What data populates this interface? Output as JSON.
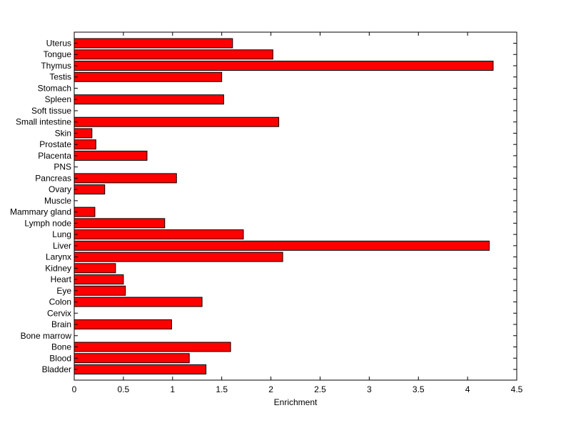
{
  "chart_data": {
    "type": "bar",
    "orientation": "horizontal",
    "title": "",
    "xlabel": "Enrichment",
    "ylabel": "",
    "xlim": [
      0,
      4.5
    ],
    "xticks": [
      0,
      0.5,
      1,
      1.5,
      2,
      2.5,
      3,
      3.5,
      4,
      4.5
    ],
    "xtick_labels": [
      "0",
      "0.5",
      "1",
      "1.5",
      "2",
      "2.5",
      "3",
      "3.5",
      "4",
      "4.5"
    ],
    "grid": false,
    "legend": "none",
    "bar_color": "#ff0000",
    "edge_color": "#000000",
    "categories": [
      "Bladder",
      "Blood",
      "Bone",
      "Bone marrow",
      "Brain",
      "Cervix",
      "Colon",
      "Eye",
      "Heart",
      "Kidney",
      "Larynx",
      "Liver",
      "Lung",
      "Lymph node",
      "Mammary gland",
      "Muscle",
      "Ovary",
      "Pancreas",
      "PNS",
      "Placenta",
      "Prostate",
      "Skin",
      "Small intestine",
      "Soft tissue",
      "Spleen",
      "Stomach",
      "Testis",
      "Thymus",
      "Tongue",
      "Uterus"
    ],
    "values": [
      1.34,
      1.17,
      1.59,
      0,
      0.99,
      0,
      1.3,
      0.52,
      0.5,
      0.42,
      2.12,
      4.22,
      1.72,
      0.92,
      0.21,
      0,
      0.31,
      1.04,
      0,
      0.74,
      0.22,
      0.18,
      2.08,
      0,
      1.52,
      0,
      1.5,
      4.26,
      2.02,
      1.61
    ]
  }
}
